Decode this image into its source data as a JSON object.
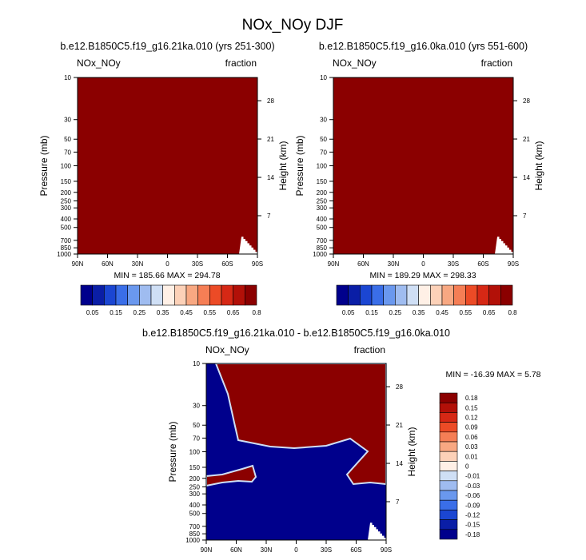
{
  "figure": {
    "title": "NOx_NOy DJF"
  },
  "chart_data": [
    {
      "type": "heatmap",
      "title": "b.e12.B1850C5.f19_g16.21ka.010 (yrs 251-300)",
      "left_label": "NOx_NOy",
      "right_label": "fraction",
      "ylabel": "Pressure (mb)",
      "ylabel_right": "Height (km)",
      "x_ticks": [
        "90N",
        "60N",
        "30N",
        "0",
        "30S",
        "60S",
        "90S"
      ],
      "y_ticks": [
        "10",
        "30",
        "50",
        "70",
        "100",
        "150",
        "200",
        "250",
        "300",
        "400",
        "500",
        "700",
        "850",
        "1000"
      ],
      "right_ticks": [
        "28",
        "21",
        "14",
        "7"
      ],
      "stats": "MIN = 185.66  MAX = 294.78",
      "fill_color": "#8b0000",
      "colorbar_labels": [
        "0.05",
        "0.15",
        "0.25",
        "0.35",
        "0.45",
        "0.55",
        "0.65",
        "0.8"
      ],
      "colorbar_colors": [
        "#00008c",
        "#0a1ea6",
        "#1b46d2",
        "#3a6ee8",
        "#6a98ee",
        "#9fbcf0",
        "#cfdff5",
        "#fff0e6",
        "#fcd1b8",
        "#f8a882",
        "#f57e55",
        "#ec4b26",
        "#d62815",
        "#b21008",
        "#8b0000"
      ]
    },
    {
      "type": "heatmap",
      "title": "b.e12.B1850C5.f19_g16.0ka.010 (yrs 551-600)",
      "left_label": "NOx_NOy",
      "right_label": "fraction",
      "ylabel": "Pressure (mb)",
      "ylabel_right": "Height (km)",
      "x_ticks": [
        "90N",
        "60N",
        "30N",
        "0",
        "30S",
        "60S",
        "90S"
      ],
      "y_ticks": [
        "10",
        "30",
        "50",
        "70",
        "100",
        "150",
        "200",
        "250",
        "300",
        "400",
        "500",
        "700",
        "850",
        "1000"
      ],
      "right_ticks": [
        "28",
        "21",
        "14",
        "7"
      ],
      "stats": "MIN = 189.29  MAX = 298.33",
      "fill_color": "#8b0000",
      "colorbar_labels": [
        "0.05",
        "0.15",
        "0.25",
        "0.35",
        "0.45",
        "0.55",
        "0.65",
        "0.8"
      ],
      "colorbar_colors": [
        "#00008c",
        "#0a1ea6",
        "#1b46d2",
        "#3a6ee8",
        "#6a98ee",
        "#9fbcf0",
        "#cfdff5",
        "#fff0e6",
        "#fcd1b8",
        "#f8a882",
        "#f57e55",
        "#ec4b26",
        "#d62815",
        "#b21008",
        "#8b0000"
      ]
    },
    {
      "type": "heatmap",
      "title": "b.e12.B1850C5.f19_g16.21ka.010 - b.e12.B1850C5.f19_g16.0ka.010",
      "left_label": "NOx_NOy",
      "right_label": "fraction",
      "ylabel": "Pressure (mb)",
      "ylabel_right": "Height (km)",
      "x_ticks": [
        "90N",
        "60N",
        "30N",
        "0",
        "30S",
        "60S",
        "90S"
      ],
      "y_ticks": [
        "10",
        "30",
        "50",
        "70",
        "100",
        "150",
        "200",
        "250",
        "300",
        "400",
        "500",
        "700",
        "850",
        "1000"
      ],
      "right_ticks": [
        "28",
        "21",
        "14",
        "7"
      ],
      "stats": "MIN = -16.39  MAX =   5.78",
      "positive_color": "#8b0000",
      "negative_color": "#00008c",
      "colorbar_labels": [
        "0.18",
        "0.15",
        "0.12",
        "0.09",
        "0.06",
        "0.03",
        "0.01",
        "0",
        "-0.01",
        "-0.03",
        "-0.06",
        "-0.09",
        "-0.12",
        "-0.15",
        "-0.18"
      ],
      "colorbar_colors": [
        "#8b0000",
        "#b21008",
        "#d62815",
        "#ec4b26",
        "#f57e55",
        "#f8a882",
        "#fcd1b8",
        "#fff0e6",
        "#cfdff5",
        "#9fbcf0",
        "#6a98ee",
        "#3a6ee8",
        "#1b46d2",
        "#0a1ea6",
        "#00008c"
      ]
    }
  ]
}
